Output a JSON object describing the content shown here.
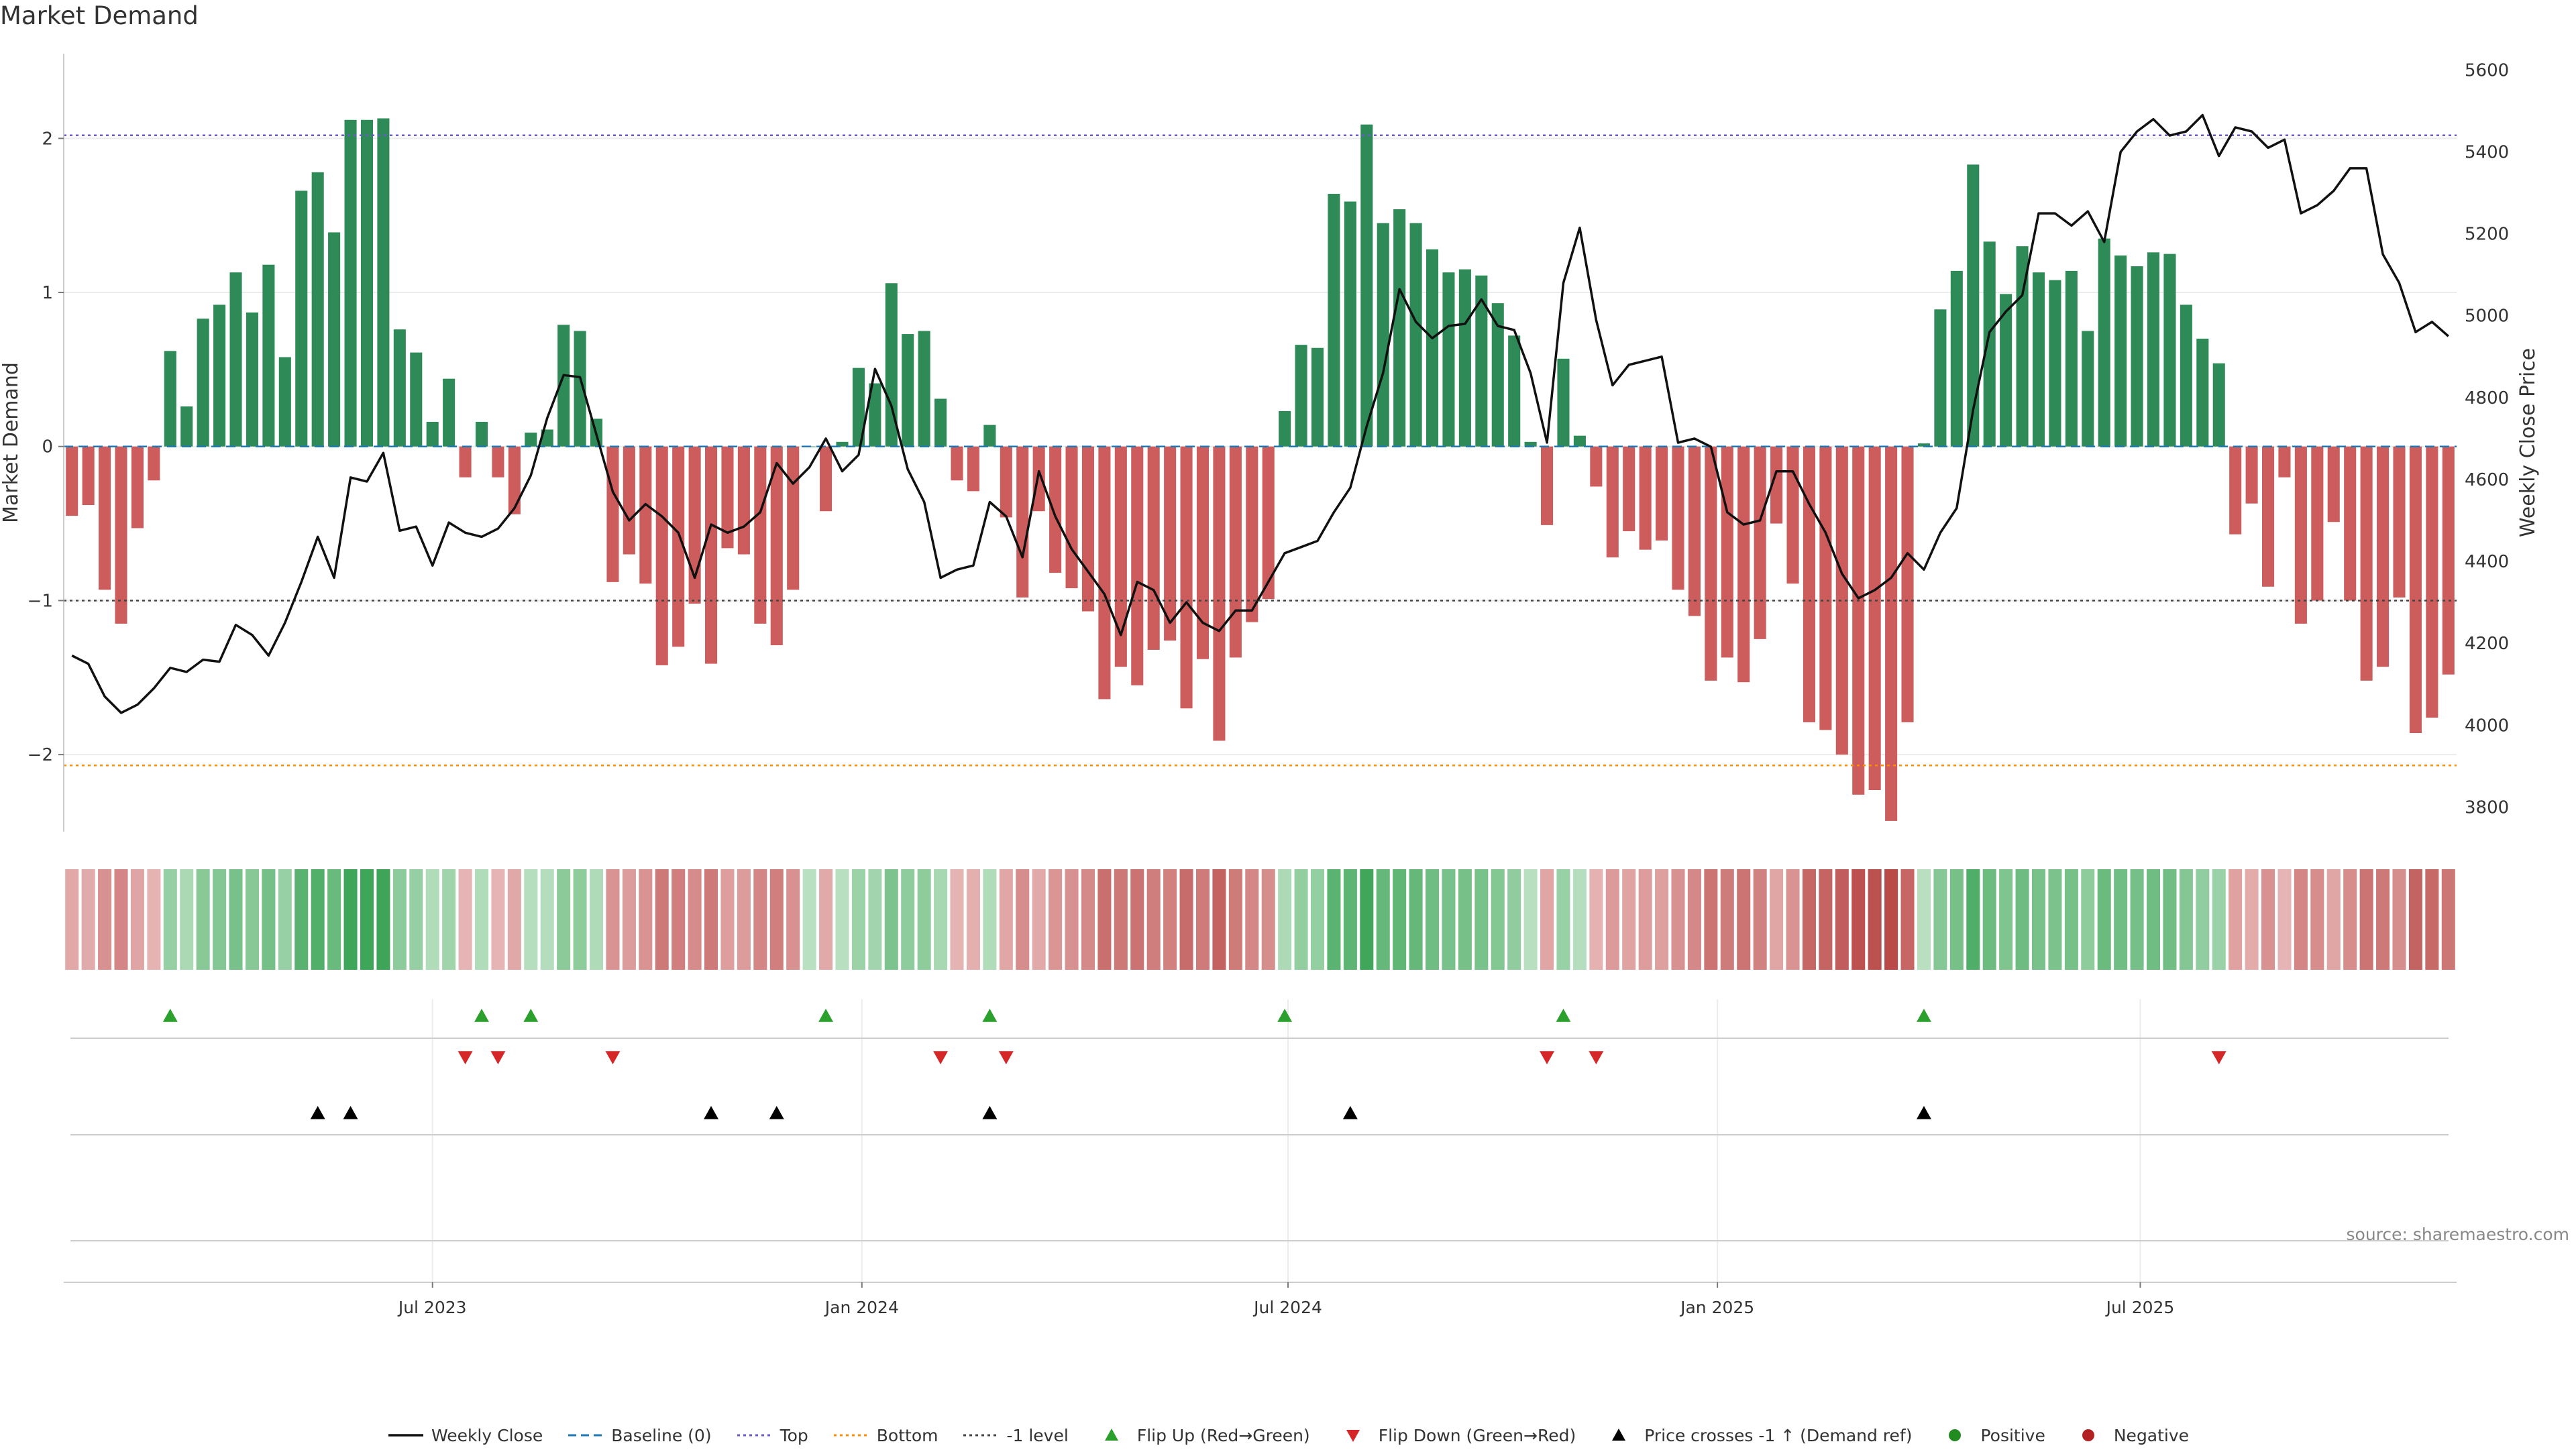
{
  "title": "Market Demand",
  "source": "source: sharemaestro.com",
  "colors": {
    "positive": "#2e8b57",
    "negative": "#cd5c5c",
    "close": "#111111",
    "top_line": "#6a5acd",
    "bottom_line": "#ff8c00",
    "minus1_line": "#444444",
    "flip_up": "#2ca02c",
    "flip_down": "#d62728",
    "cross": "#000000"
  },
  "legend": [
    {
      "label": "Weekly Close",
      "icon": "solid-line-icon",
      "color": "#111111"
    },
    {
      "label": "Baseline (0)",
      "icon": "dashed-line-icon",
      "color": "#1f77b4"
    },
    {
      "label": "Top",
      "icon": "dotted-line-icon",
      "color": "#6a5acd"
    },
    {
      "label": "Bottom",
      "icon": "dotted-line-icon",
      "color": "#ff8c00"
    },
    {
      "label": "-1 level",
      "icon": "dotted-line-icon",
      "color": "#444444"
    },
    {
      "label": "Flip Up (Red→Green)",
      "icon": "triangle-up-icon",
      "color": "#2ca02c"
    },
    {
      "label": "Flip Down (Green→Red)",
      "icon": "triangle-down-icon",
      "color": "#d62728"
    },
    {
      "label": "Price crosses -1 ↑ (Demand ref)",
      "icon": "triangle-up-icon",
      "color": "#000000"
    },
    {
      "label": "Positive",
      "icon": "dot-icon",
      "color": "#228b22"
    },
    {
      "label": "Negative",
      "icon": "dot-icon",
      "color": "#b22222"
    }
  ],
  "chart_data": {
    "type": "bar",
    "xlabel": "",
    "ylabel": "Market Demand",
    "y2label": "Weekly Close Price",
    "ylim": [
      -2.5,
      2.55
    ],
    "y_ticks": [
      -2,
      -1,
      0,
      1,
      2
    ],
    "y_tick_labels": [
      "−2",
      "−1",
      "0",
      "1",
      "2"
    ],
    "y2lim": [
      3740,
      5640
    ],
    "y2_ticks": [
      3800,
      4000,
      4200,
      4400,
      4600,
      4800,
      5000,
      5200,
      5400,
      5600
    ],
    "x_tick_labels": [
      {
        "week": 22,
        "label": "Jul 2023"
      },
      {
        "week": 48.2,
        "label": "Jan 2024"
      },
      {
        "week": 74.2,
        "label": "Jul 2024"
      },
      {
        "week": 100.4,
        "label": "Jan 2025"
      },
      {
        "week": 126.2,
        "label": "Jul 2025"
      }
    ],
    "reference_lines": {
      "top": 2.02,
      "bottom": -2.07,
      "minus_one": -1.0,
      "baseline": 0
    },
    "series": [
      {
        "name": "Market Demand",
        "values": [
          -0.45,
          -0.38,
          -0.93,
          -1.15,
          -0.53,
          -0.22,
          0.62,
          0.26,
          0.83,
          0.92,
          1.13,
          0.87,
          1.18,
          0.58,
          1.66,
          1.78,
          1.39,
          2.12,
          2.12,
          2.13,
          0.76,
          0.61,
          0.16,
          0.44,
          -0.2,
          0.16,
          -0.2,
          -0.44,
          0.09,
          0.11,
          0.79,
          0.75,
          0.18,
          -0.88,
          -0.7,
          -0.89,
          -1.42,
          -1.3,
          -1.02,
          -1.41,
          -0.66,
          -0.7,
          -1.15,
          -1.29,
          -0.93,
          0.0,
          -0.42,
          0.03,
          0.51,
          0.41,
          1.06,
          0.73,
          0.75,
          0.31,
          -0.22,
          -0.29,
          0.14,
          -0.46,
          -0.98,
          -0.42,
          -0.82,
          -0.92,
          -1.07,
          -1.64,
          -1.43,
          -1.55,
          -1.32,
          -1.26,
          -1.7,
          -1.38,
          -1.91,
          -1.37,
          -1.14,
          -0.99,
          0.23,
          0.66,
          0.64,
          1.64,
          1.59,
          2.09,
          1.45,
          1.54,
          1.45,
          1.28,
          1.13,
          1.15,
          1.11,
          0.93,
          0.72,
          0.03,
          -0.51,
          0.57,
          0.07,
          -0.26,
          -0.72,
          -0.55,
          -0.67,
          -0.61,
          -0.93,
          -1.1,
          -1.52,
          -1.37,
          -1.53,
          -1.25,
          -0.5,
          -0.89,
          -1.79,
          -1.84,
          -2.0,
          -2.26,
          -2.23,
          -2.43,
          -1.79,
          0.02,
          0.89,
          1.14,
          1.83,
          1.33,
          0.99,
          1.3,
          1.13,
          1.08,
          1.14,
          0.75,
          1.35,
          1.24,
          1.17,
          1.26,
          1.25,
          0.92,
          0.7,
          0.54,
          -0.57,
          -0.37,
          -0.91,
          -0.2,
          -1.15,
          -1.0,
          -0.49,
          -1.0,
          -1.52,
          -1.43,
          -0.98,
          -1.86,
          -1.76,
          -1.48
        ]
      },
      {
        "name": "Weekly Close",
        "values": [
          4170,
          4150,
          4070,
          4030,
          4050,
          4090,
          4140,
          4130,
          4160,
          4155,
          4245,
          4220,
          4170,
          4250,
          4350,
          4460,
          4360,
          4605,
          4595,
          4665,
          4475,
          4485,
          4390,
          4495,
          4470,
          4460,
          4480,
          4530,
          4610,
          4750,
          4855,
          4850,
          4710,
          4570,
          4500,
          4540,
          4510,
          4470,
          4360,
          4490,
          4470,
          4485,
          4520,
          4640,
          4590,
          4630,
          4700,
          4620,
          4660,
          4870,
          4780,
          4625,
          4545,
          4360,
          4380,
          4390,
          4545,
          4510,
          4410,
          4620,
          4510,
          4430,
          4375,
          4320,
          4220,
          4350,
          4330,
          4250,
          4300,
          4250,
          4230,
          4280,
          4280,
          4350,
          4420,
          4435,
          4450,
          4520,
          4580,
          4730,
          4860,
          5065,
          4985,
          4945,
          4975,
          4980,
          5040,
          4975,
          4965,
          4860,
          4690,
          5080,
          5215,
          4990,
          4830,
          4880,
          4890,
          4900,
          4690,
          4700,
          4680,
          4520,
          4490,
          4500,
          4620,
          4620,
          4540,
          4470,
          4370,
          4310,
          4330,
          4360,
          4420,
          4380,
          4470,
          4530,
          4770,
          4960,
          5010,
          5050,
          5250,
          5250,
          5220,
          5255,
          5180,
          5400,
          5450,
          5480,
          5440,
          5450,
          5490,
          5390,
          5460,
          5450,
          5410,
          5430,
          5250,
          5270,
          5305,
          5360,
          5360,
          5150,
          5080,
          4960,
          4985,
          4950
        ]
      },
      {
        "name": "Flip Up",
        "weeks": [
          6,
          25,
          28,
          46,
          56,
          74,
          91,
          113
        ]
      },
      {
        "name": "Flip Down",
        "weeks": [
          24,
          26,
          33,
          53,
          57,
          90,
          93,
          131
        ]
      },
      {
        "name": "Price crosses -1 ↑",
        "weeks": [
          15,
          17,
          39,
          43,
          56,
          78,
          113
        ]
      }
    ]
  }
}
